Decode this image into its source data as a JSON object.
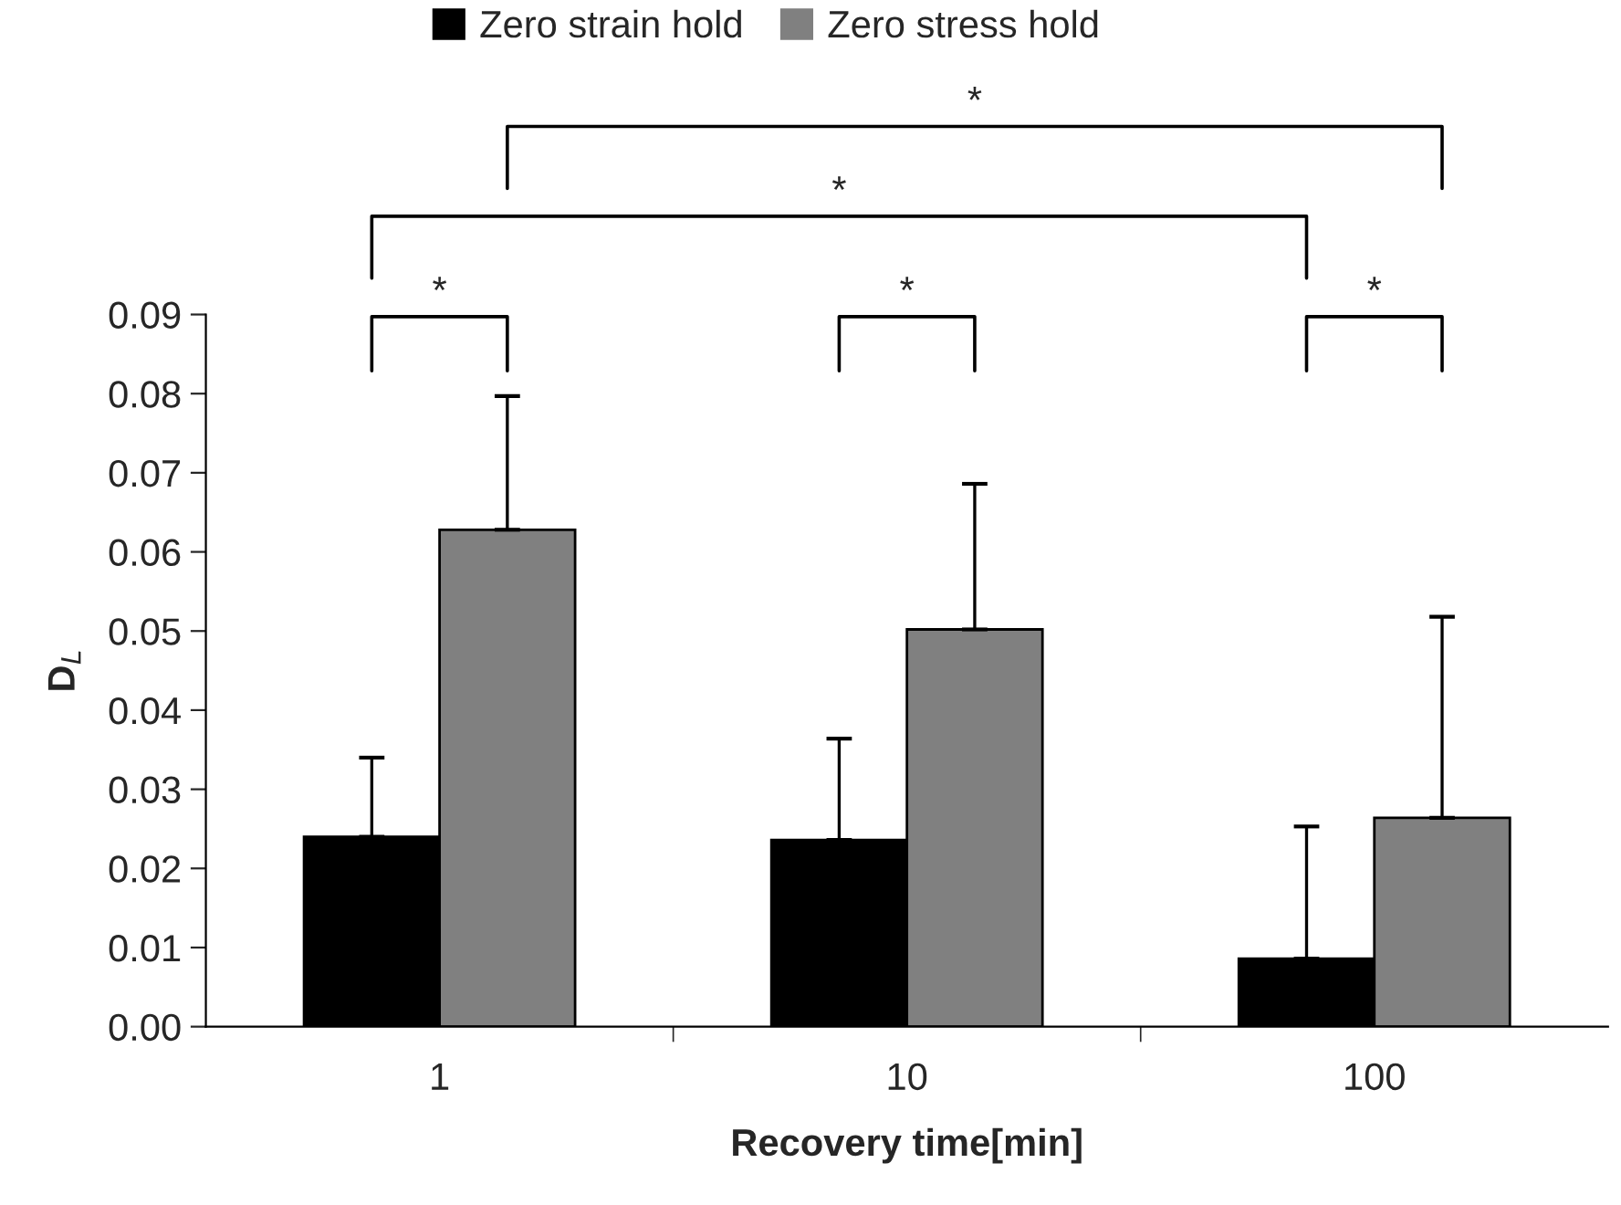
{
  "chart_data": {
    "type": "bar",
    "xlabel": "Recovery time[min]",
    "ylabel": "D$_{L}$",
    "categories": [
      "1",
      "10",
      "100"
    ],
    "series": [
      {
        "name": "Zero strain hold",
        "color": "#000000",
        "values": [
          0.024,
          0.0236,
          0.0086
        ],
        "errors": [
          [
            0.024,
            0.034
          ],
          [
            0.0236,
            0.0364
          ],
          [
            0.0086,
            0.0253
          ]
        ]
      },
      {
        "name": "Zero stress hold",
        "color": "#808080",
        "values": [
          0.0628,
          0.0502,
          0.0264
        ],
        "errors": [
          [
            0.0628,
            0.0797
          ],
          [
            0.0502,
            0.0686
          ],
          [
            0.0264,
            0.0518
          ]
        ]
      }
    ],
    "ylim": [
      0,
      0.09
    ],
    "yticks": [
      {
        "value": 0,
        "label": "0.00"
      },
      {
        "value": 0.01,
        "label": "0.01"
      },
      {
        "value": 0.02,
        "label": "0.02"
      },
      {
        "value": 0.03,
        "label": "0.03"
      },
      {
        "value": 0.04,
        "label": "0.04"
      },
      {
        "value": 0.05,
        "label": "0.05"
      },
      {
        "value": 0.06,
        "label": "0.06"
      },
      {
        "value": 0.07,
        "label": "0.07"
      },
      {
        "value": 0.08,
        "label": "0.08"
      },
      {
        "value": 0.09,
        "label": "0.09"
      }
    ],
    "annotations": [
      "*",
      "*",
      "*",
      "*",
      "*"
    ],
    "legend": "top",
    "grid": false
  }
}
